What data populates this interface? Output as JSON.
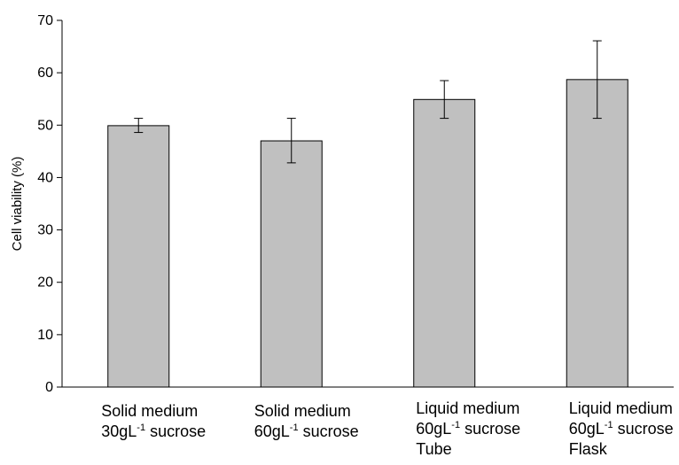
{
  "chart_data": {
    "type": "bar",
    "title": "",
    "xlabel": "",
    "ylabel": "Cell viability (%)",
    "ylim": [
      0,
      70
    ],
    "yticks": [
      0,
      10,
      20,
      30,
      40,
      50,
      60,
      70
    ],
    "grid": false,
    "legend": "none",
    "bar_color": "#c0c0c0",
    "bar_edge_color": "#000000",
    "categories": [
      {
        "lines": [
          [
            "Solid medium"
          ],
          [
            "30gL",
            "-1",
            " sucrose"
          ]
        ]
      },
      {
        "lines": [
          [
            "Solid medium"
          ],
          [
            "60gL",
            "-1",
            " sucrose"
          ]
        ]
      },
      {
        "lines": [
          [
            "Liquid medium"
          ],
          [
            "60gL",
            "-1",
            " sucrose"
          ],
          [
            "Tube"
          ]
        ]
      },
      {
        "lines": [
          [
            "Liquid medium"
          ],
          [
            "60gL",
            "-1",
            " sucrose"
          ],
          [
            "Flask"
          ]
        ]
      }
    ],
    "values": [
      49.9,
      47.0,
      54.9,
      58.7
    ],
    "error_low": [
      48.6,
      42.8,
      51.3,
      51.3
    ],
    "error_high": [
      51.3,
      51.3,
      58.5,
      66.1
    ]
  }
}
